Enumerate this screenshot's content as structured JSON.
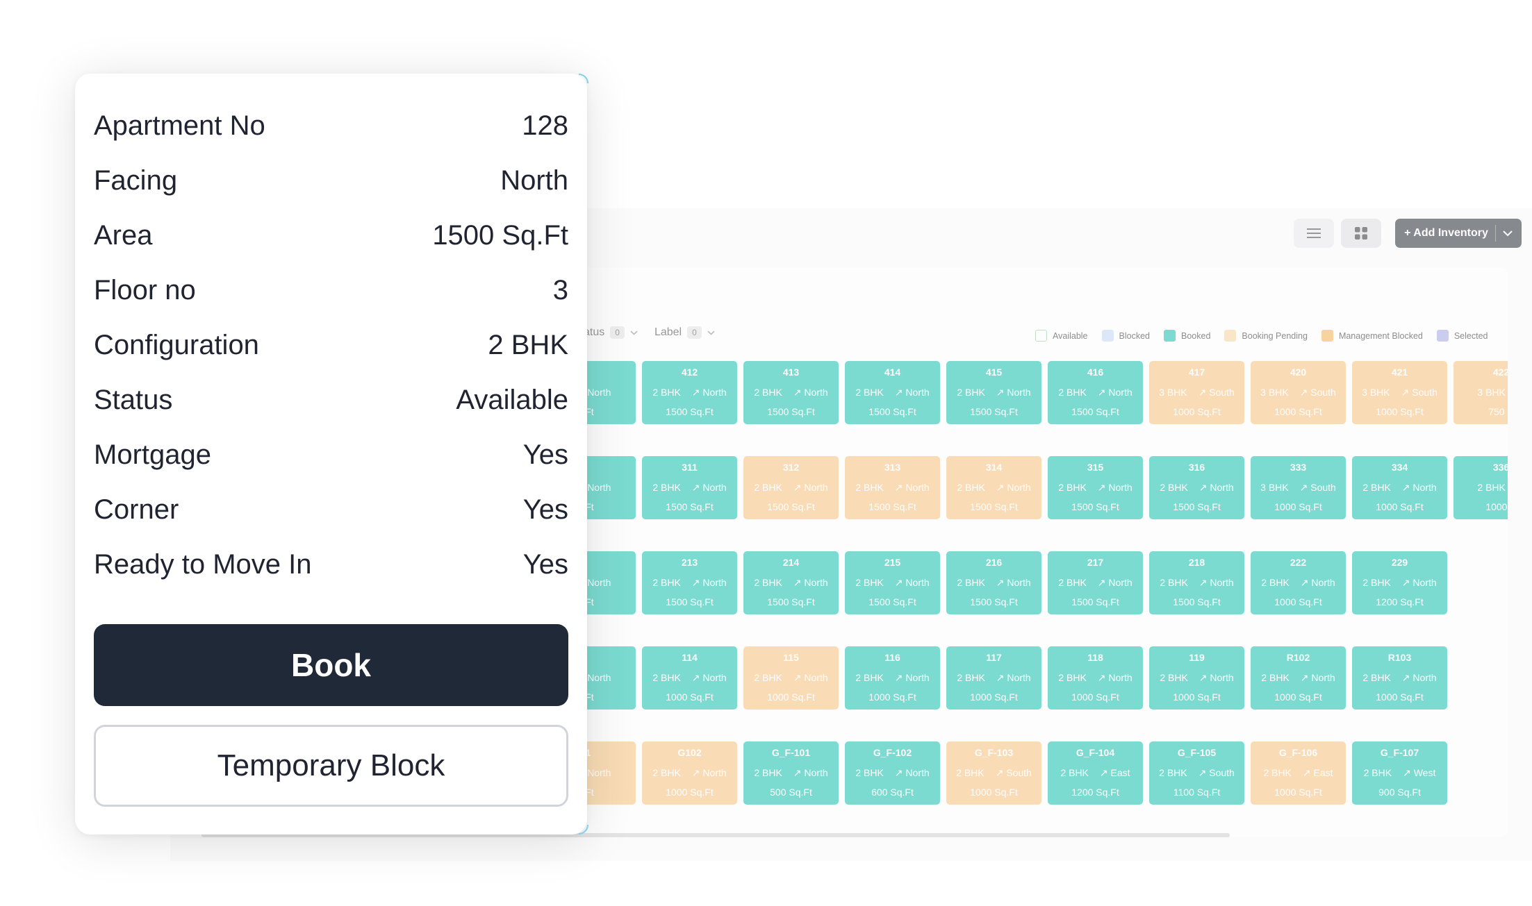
{
  "toolbar": {
    "list_view_icon": "list-icon",
    "grid_view_icon": "grid-icon",
    "add_inventory_label": "+ Add Inventory",
    "add_inventory_chevron": "chevron-down-icon"
  },
  "filters": [
    {
      "label": "atus",
      "count": "0"
    },
    {
      "label": "Label",
      "count": "0"
    }
  ],
  "legend": [
    {
      "label": "Available",
      "color": "#ffffff",
      "border": "#9ad39f"
    },
    {
      "label": "Blocked",
      "color": "#c9dcf7",
      "border": "#c9dcf7"
    },
    {
      "label": "Booked",
      "color": "#27c7b6",
      "border": "#27c7b6"
    },
    {
      "label": "Booking Pending",
      "color": "#f9d9a8",
      "border": "#f9d9a8"
    },
    {
      "label": "Management Blocked",
      "color": "#f5b961",
      "border": "#f5b961"
    },
    {
      "label": "Selected",
      "color": "#aab0e6",
      "border": "#aab0e6"
    }
  ],
  "tile_colors": {
    "booked": "#27c7b6",
    "pending": "#f9c887"
  },
  "inventory_rows": [
    [
      {
        "no": "",
        "config": "",
        "facing": "North",
        "area": ".Ft",
        "status": "booked"
      },
      {
        "no": "412",
        "config": "2 BHK",
        "facing": "North",
        "area": "1500 Sq.Ft",
        "status": "booked"
      },
      {
        "no": "413",
        "config": "2 BHK",
        "facing": "North",
        "area": "1500 Sq.Ft",
        "status": "booked"
      },
      {
        "no": "414",
        "config": "2 BHK",
        "facing": "North",
        "area": "1500 Sq.Ft",
        "status": "booked"
      },
      {
        "no": "415",
        "config": "2 BHK",
        "facing": "North",
        "area": "1500 Sq.Ft",
        "status": "booked"
      },
      {
        "no": "416",
        "config": "2 BHK",
        "facing": "North",
        "area": "1500 Sq.Ft",
        "status": "booked"
      },
      {
        "no": "417",
        "config": "3 BHK",
        "facing": "South",
        "area": "1000 Sq.Ft",
        "status": "pending"
      },
      {
        "no": "420",
        "config": "3 BHK",
        "facing": "South",
        "area": "1000 Sq.Ft",
        "status": "pending"
      },
      {
        "no": "421",
        "config": "3 BHK",
        "facing": "South",
        "area": "1000 Sq.Ft",
        "status": "pending"
      },
      {
        "no": "422",
        "config": "3 BHK",
        "facing": "",
        "area": "750 S",
        "status": "pending"
      }
    ],
    [
      {
        "no": "",
        "config": "",
        "facing": "North",
        "area": ".Ft",
        "status": "booked"
      },
      {
        "no": "311",
        "config": "2 BHK",
        "facing": "North",
        "area": "1500 Sq.Ft",
        "status": "booked"
      },
      {
        "no": "312",
        "config": "2 BHK",
        "facing": "North",
        "area": "1500 Sq.Ft",
        "status": "pending"
      },
      {
        "no": "313",
        "config": "2 BHK",
        "facing": "North",
        "area": "1500 Sq.Ft",
        "status": "pending"
      },
      {
        "no": "314",
        "config": "2 BHK",
        "facing": "North",
        "area": "1500 Sq.Ft",
        "status": "pending"
      },
      {
        "no": "315",
        "config": "2 BHK",
        "facing": "North",
        "area": "1500 Sq.Ft",
        "status": "booked"
      },
      {
        "no": "316",
        "config": "2 BHK",
        "facing": "North",
        "area": "1500 Sq.Ft",
        "status": "booked"
      },
      {
        "no": "333",
        "config": "3 BHK",
        "facing": "South",
        "area": "1000 Sq.Ft",
        "status": "booked"
      },
      {
        "no": "334",
        "config": "2 BHK",
        "facing": "North",
        "area": "1000 Sq.Ft",
        "status": "booked"
      },
      {
        "no": "336",
        "config": "2 BHK",
        "facing": "",
        "area": "1000 S",
        "status": "booked"
      }
    ],
    [
      {
        "no": "",
        "config": "",
        "facing": "North",
        "area": ".Ft",
        "status": "booked"
      },
      {
        "no": "213",
        "config": "2 BHK",
        "facing": "North",
        "area": "1500 Sq.Ft",
        "status": "booked"
      },
      {
        "no": "214",
        "config": "2 BHK",
        "facing": "North",
        "area": "1500 Sq.Ft",
        "status": "booked"
      },
      {
        "no": "215",
        "config": "2 BHK",
        "facing": "North",
        "area": "1500 Sq.Ft",
        "status": "booked"
      },
      {
        "no": "216",
        "config": "2 BHK",
        "facing": "North",
        "area": "1500 Sq.Ft",
        "status": "booked"
      },
      {
        "no": "217",
        "config": "2 BHK",
        "facing": "North",
        "area": "1500 Sq.Ft",
        "status": "booked"
      },
      {
        "no": "218",
        "config": "2 BHK",
        "facing": "North",
        "area": "1500 Sq.Ft",
        "status": "booked"
      },
      {
        "no": "222",
        "config": "2 BHK",
        "facing": "North",
        "area": "1000 Sq.Ft",
        "status": "booked"
      },
      {
        "no": "229",
        "config": "2 BHK",
        "facing": "North",
        "area": "1200 Sq.Ft",
        "status": "booked"
      }
    ],
    [
      {
        "no": "",
        "config": "",
        "facing": "North",
        "area": ".Ft",
        "status": "booked"
      },
      {
        "no": "114",
        "config": "2 BHK",
        "facing": "North",
        "area": "1000 Sq.Ft",
        "status": "booked"
      },
      {
        "no": "115",
        "config": "2 BHK",
        "facing": "North",
        "area": "1000 Sq.Ft",
        "status": "pending"
      },
      {
        "no": "116",
        "config": "2 BHK",
        "facing": "North",
        "area": "1000 Sq.Ft",
        "status": "booked"
      },
      {
        "no": "117",
        "config": "2 BHK",
        "facing": "North",
        "area": "1000 Sq.Ft",
        "status": "booked"
      },
      {
        "no": "118",
        "config": "2 BHK",
        "facing": "North",
        "area": "1000 Sq.Ft",
        "status": "booked"
      },
      {
        "no": "119",
        "config": "2 BHK",
        "facing": "North",
        "area": "1000 Sq.Ft",
        "status": "booked"
      },
      {
        "no": "R102",
        "config": "2 BHK",
        "facing": "North",
        "area": "1000 Sq.Ft",
        "status": "booked"
      },
      {
        "no": "R103",
        "config": "2 BHK",
        "facing": "North",
        "area": "1000 Sq.Ft",
        "status": "booked"
      }
    ],
    [
      {
        "no": "1",
        "config": "",
        "facing": "North",
        "area": ".Ft",
        "status": "pending"
      },
      {
        "no": "G102",
        "config": "2 BHK",
        "facing": "North",
        "area": "1000 Sq.Ft",
        "status": "pending"
      },
      {
        "no": "G_F-101",
        "config": "2 BHK",
        "facing": "North",
        "area": "500 Sq.Ft",
        "status": "booked"
      },
      {
        "no": "G_F-102",
        "config": "2 BHK",
        "facing": "North",
        "area": "600 Sq.Ft",
        "status": "booked"
      },
      {
        "no": "G_F-103",
        "config": "2 BHK",
        "facing": "South",
        "area": "1000 Sq.Ft",
        "status": "pending"
      },
      {
        "no": "G_F-104",
        "config": "2 BHK",
        "facing": "East",
        "area": "1200 Sq.Ft",
        "status": "booked"
      },
      {
        "no": "G_F-105",
        "config": "2 BHK",
        "facing": "South",
        "area": "1100 Sq.Ft",
        "status": "booked"
      },
      {
        "no": "G_F-106",
        "config": "2 BHK",
        "facing": "East",
        "area": "1000 Sq.Ft",
        "status": "pending"
      },
      {
        "no": "G_F-107",
        "config": "2 BHK",
        "facing": "West",
        "area": "900 Sq.Ft",
        "status": "booked"
      }
    ]
  ],
  "details": [
    {
      "label": "Apartment No",
      "value": "128"
    },
    {
      "label": "Facing",
      "value": "North"
    },
    {
      "label": "Area",
      "value": "1500 Sq.Ft"
    },
    {
      "label": "Floor no",
      "value": "3"
    },
    {
      "label": "Configuration",
      "value": "2 BHK"
    },
    {
      "label": "Status",
      "value": "Available"
    },
    {
      "label": "Mortgage",
      "value": "Yes"
    },
    {
      "label": "Corner",
      "value": "Yes"
    },
    {
      "label": "Ready to Move In",
      "value": "Yes"
    }
  ],
  "actions": {
    "book_label": "Book",
    "temporary_block_label": "Temporary Block"
  }
}
